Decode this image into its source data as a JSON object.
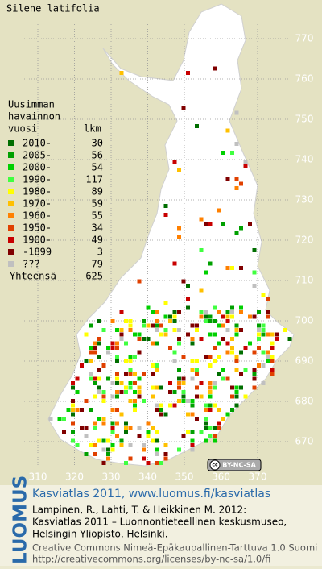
{
  "title": "Silene latifolia",
  "legend": {
    "heading_lines": [
      "Uusimman",
      "havainnon"
    ],
    "year_heading": "vuosi",
    "count_heading": "lkm",
    "rows": [
      {
        "label": "2010-",
        "count": 30,
        "color": "#006e00"
      },
      {
        "label": "2005-",
        "count": 56,
        "color": "#00a000"
      },
      {
        "label": "2000-",
        "count": 54,
        "color": "#00d000"
      },
      {
        "label": "1990-",
        "count": 117,
        "color": "#40ff40"
      },
      {
        "label": "1980-",
        "count": 89,
        "color": "#ffff00"
      },
      {
        "label": "1970-",
        "count": 59,
        "color": "#ffc000"
      },
      {
        "label": "1960-",
        "count": 55,
        "color": "#ff8000"
      },
      {
        "label": "1950-",
        "count": 34,
        "color": "#e04000"
      },
      {
        "label": "1900-",
        "count": 49,
        "color": "#c80000"
      },
      {
        "label": "-1899",
        "count": 3,
        "color": "#800000"
      },
      {
        "label": "???",
        "count": 79,
        "color": "#c0c0c0"
      }
    ],
    "total_label": "Yhteensä",
    "total": 625
  },
  "map": {
    "xticks": [
      310,
      320,
      330,
      340,
      350,
      360,
      370
    ],
    "yticks": [
      670,
      680,
      690,
      700,
      710,
      720,
      730,
      740,
      750,
      760,
      770
    ]
  },
  "badge": {
    "icon": "cc",
    "text": "BY-NC-SA"
  },
  "footer": {
    "logo": "LUOMUS",
    "headline": "Kasviatlas 2011, www.luomus.fi/kasviatlas",
    "citation": [
      "Lampinen, R., Lahti, T. & Heikkinen M. 2012:",
      "Kasviatlas 2011 – Luonnontieteellinen keskusmuseo,",
      "Helsingin Yliopisto, Helsinki."
    ],
    "license": [
      "Creative Commons Nimeä-Epäkaupallinen-Tarttuva 1.0 Suomi",
      "http://creativecommons.org/licenses/by-nc-sa/1.0/fi"
    ]
  }
}
